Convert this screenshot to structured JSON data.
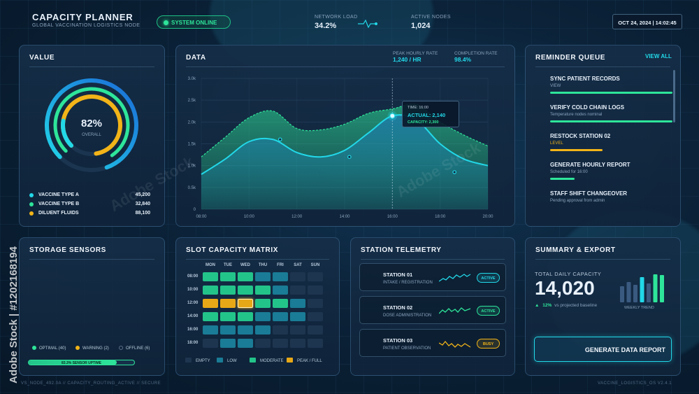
{
  "header": {
    "title": "CAPACITY PLANNER",
    "subtitle": "GLOBAL VACCINATION LOGISTICS NODE",
    "status": "SYSTEM ONLINE",
    "network_load_label": "NETWORK LOAD",
    "network_load_value": "34.2%",
    "active_nodes_label": "ACTIVE NODES",
    "active_nodes_value": "1,024",
    "datetime": "OCT 24, 2024 | 14:02:45"
  },
  "value_panel": {
    "title": "VALUE",
    "gauge_value": "82%",
    "gauge_label": "OVERALL",
    "gauge_fraction": 0.82,
    "items": [
      {
        "label": "VACCINE TYPE A",
        "value": "45,200",
        "color": "#22d8e8"
      },
      {
        "label": "VACCINE TYPE B",
        "value": "32,840",
        "color": "#2ee59a"
      },
      {
        "label": "DILUENT FLUIDS",
        "value": "88,100",
        "color": "#f2b418"
      }
    ]
  },
  "data_panel": {
    "title": "DATA",
    "peak_label": "PEAK HOURLY RATE",
    "peak_value": "1,240 / HR",
    "completion_label": "COMPLETION RATE",
    "completion_value": "98.4%",
    "tooltip": {
      "time": "TIME: 16:00",
      "actual": "ACTUAL: 2,140",
      "capacity": "CAPACITY: 2,300"
    }
  },
  "chart_data": {
    "type": "area",
    "x_ticks": [
      "08:00",
      "10:00",
      "12:00",
      "14:00",
      "16:00",
      "18:00",
      "20:00"
    ],
    "y_ticks": [
      "0",
      "0.5k",
      "1.0k",
      "1.5k",
      "2.0k",
      "2.5k",
      "3.0k"
    ],
    "ylim": [
      0,
      3000
    ],
    "x_hours": [
      8,
      9,
      10,
      11,
      12,
      13,
      14,
      15,
      16,
      17,
      18,
      19,
      20
    ],
    "series": [
      {
        "name": "CAPACITY",
        "values": [
          1200,
          1650,
          2100,
          2250,
          1850,
          1820,
          1950,
          2200,
          2300,
          2400,
          2000,
          1700,
          1450
        ],
        "color": "#2ee59a"
      },
      {
        "name": "ACTUAL",
        "values": [
          800,
          1150,
          1550,
          1600,
          1300,
          1200,
          1350,
          1750,
          2140,
          2050,
          1500,
          1150,
          1000
        ],
        "color": "#22d8e8"
      }
    ],
    "markers": [
      {
        "x": 11.3,
        "y": 1600
      },
      {
        "x": 14.2,
        "y": 1200
      },
      {
        "x": 16,
        "y": 2140
      },
      {
        "x": 18.6,
        "y": 850
      }
    ],
    "cursor_x": 16,
    "grid": true
  },
  "reminder": {
    "title": "REMINDER QUEUE",
    "view_all": "VIEW ALL",
    "items": [
      {
        "title": "SYNC PATIENT RECORDS",
        "sub": "VIEW",
        "progress": 1.0,
        "color": "#2ee59a",
        "sub_color": "#8aa4bd"
      },
      {
        "title": "VERIFY COLD CHAIN LOGS",
        "sub": "Temperature nodes nominal",
        "progress": 1.0,
        "color": "#2ee59a",
        "sub_color": "#8aa4bd"
      },
      {
        "title": "RESTOCK STATION 02",
        "sub": "LEVEL",
        "progress": 0.43,
        "color": "#f2b418",
        "sub_color": "#f2b418"
      },
      {
        "title": "GENERATE HOURLY REPORT",
        "sub": "Scheduled for 16:00",
        "progress": 0.2,
        "color": "#2ee59a",
        "sub_color": "#8aa4bd"
      },
      {
        "title": "STAFF SHIFT CHANGEOVER",
        "sub": "Pending approval from admin",
        "progress": 0,
        "color": "#2ee59a",
        "sub_color": "#8aa4bd"
      }
    ]
  },
  "storage": {
    "title": "STORAGE SENSORS",
    "legend": [
      {
        "label": "OPTIMAL (40)",
        "color": "#2ee59a"
      },
      {
        "label": "WARNING (2)",
        "color": "#f2b418"
      },
      {
        "label": "OFFLINE (6)",
        "color": "#5a7088"
      }
    ],
    "uptime_label": "83.3% SENSOR UPTIME",
    "uptime_fraction": 0.833
  },
  "matrix": {
    "title": "SLOT CAPACITY MATRIX",
    "days": [
      "MON",
      "TUE",
      "WED",
      "THU",
      "FRI",
      "SAT",
      "SUN"
    ],
    "times": [
      "08:00",
      "10:00",
      "12:00",
      "14:00",
      "16:00",
      "18:00"
    ],
    "levels": [
      [
        "moderate",
        "moderate",
        "moderate",
        "low",
        "low",
        "empty",
        "empty"
      ],
      [
        "moderate",
        "moderate",
        "moderate",
        "moderate",
        "low",
        "empty",
        "empty"
      ],
      [
        "peak",
        "peak",
        "peak-selected",
        "moderate",
        "moderate",
        "low",
        "empty"
      ],
      [
        "moderate",
        "moderate",
        "moderate",
        "low",
        "low",
        "low",
        "empty"
      ],
      [
        "low",
        "low",
        "low",
        "low",
        "empty",
        "empty",
        "empty"
      ],
      [
        "empty",
        "low",
        "low",
        "empty",
        "empty",
        "empty",
        "empty"
      ]
    ],
    "legend": [
      {
        "label": "EMPTY",
        "color": "#1e3550"
      },
      {
        "label": "LOW",
        "color": "#1a7c96"
      },
      {
        "label": "MODERATE",
        "color": "#23c48a"
      },
      {
        "label": "PEAK / FULL",
        "color": "#e7a817"
      }
    ]
  },
  "telemetry": {
    "title": "STATION TELEMETRY",
    "stations": [
      {
        "name": "STATION 01",
        "sub": "INTAKE / REGISTRATION",
        "status": "ACTIVE",
        "color": "#22d8e8"
      },
      {
        "name": "STATION 02",
        "sub": "DOSE ADMINISTRATION",
        "status": "ACTIVE",
        "color": "#2ee59a"
      },
      {
        "name": "STATION 03",
        "sub": "PATIENT OBSERVATION",
        "status": "BUSY",
        "color": "#f2b418"
      }
    ]
  },
  "summary": {
    "title": "SUMMARY & EXPORT",
    "total_label": "TOTAL DAILY CAPACITY",
    "total_value": "14,020",
    "change": "12%",
    "change_text": "vs projected baseline",
    "trend_label": "WEEKLY TREND",
    "trend_values": [
      0.55,
      0.7,
      0.6,
      0.85,
      0.65,
      0.95,
      0.92
    ],
    "report_button": "GENERATE DATA REPORT"
  },
  "footer": {
    "left": "VS_NODE_492.0A // CAPACITY_ROUTING_ACTIVE // SECURE",
    "right": "VACCINE_LOGISTICS_OS V2.4.1"
  },
  "watermark": "Adobe Stock",
  "stock_id": "Adobe Stock | #1202168194"
}
